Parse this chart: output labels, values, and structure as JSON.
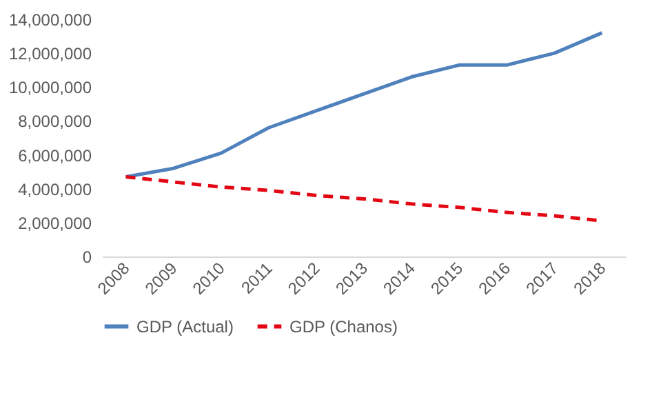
{
  "chart_data": {
    "type": "line",
    "categories": [
      "2008",
      "2009",
      "2010",
      "2011",
      "2012",
      "2013",
      "2014",
      "2015",
      "2016",
      "2017",
      "2018"
    ],
    "series": [
      {
        "name": "GDP (Actual)",
        "color": "#4f81bd",
        "line_style": "solid",
        "values": [
          4700000,
          5200000,
          6100000,
          7600000,
          8600000,
          9600000,
          10600000,
          11300000,
          11300000,
          12000000,
          13200000
        ]
      },
      {
        "name": "GDP (Chanos)",
        "color": "#e30613",
        "line_style": "dashed",
        "values": [
          4700000,
          4400000,
          4100000,
          3900000,
          3600000,
          3400000,
          3100000,
          2900000,
          2600000,
          2400000,
          2100000
        ]
      }
    ],
    "ylim": [
      0,
      14000000
    ],
    "yticks": [
      0,
      {
        "value": 2000000,
        "label": "2,000,000"
      },
      {
        "value": 4000000,
        "label": "4,000,000"
      },
      {
        "value": 6000000,
        "label": "6,000,000"
      },
      {
        "value": 8000000,
        "label": "8,000,000"
      },
      {
        "value": 10000000,
        "label": "10,000,000"
      },
      {
        "value": 12000000,
        "label": "12,000,000"
      },
      {
        "value": 14000000,
        "label": "14,000,000"
      }
    ],
    "grid": false,
    "legend": "bottom",
    "marker": "none"
  }
}
